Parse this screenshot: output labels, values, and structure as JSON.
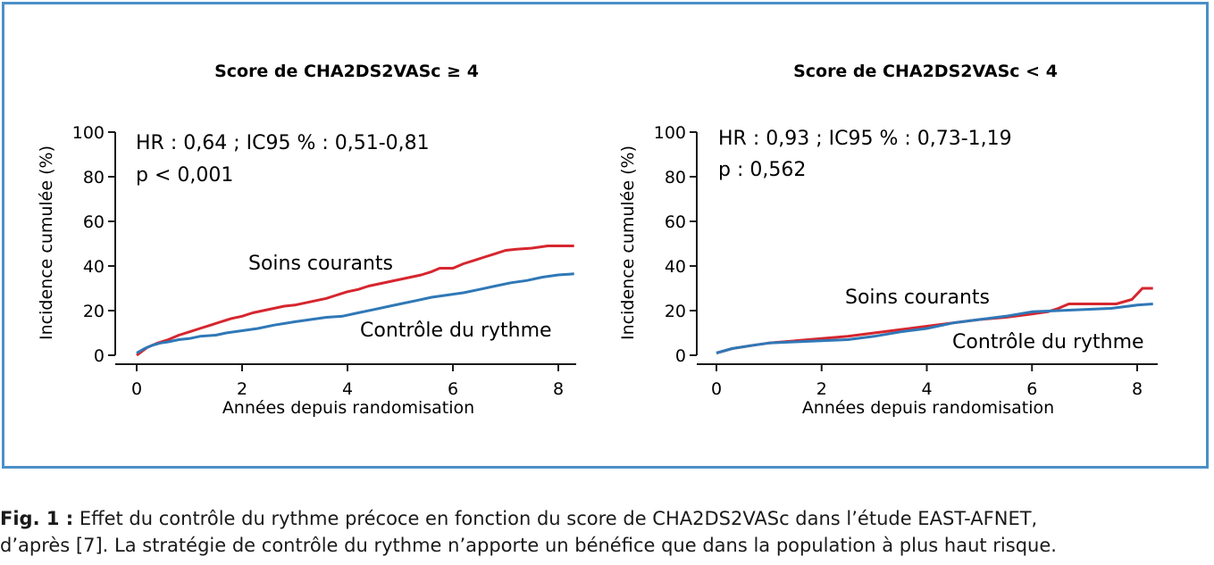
{
  "figure": {
    "caption_label": "Fig. 1 :",
    "caption_line1": " Effet du contrôle du rythme précoce en fonction du score de CHA2DS2VASc dans l’étude EAST-AFNET,",
    "caption_line2": "d’après [7]. La stratégie de contrôle du rythme n’apporte un bénéfice que dans la population à plus haut risque.",
    "colors": {
      "frame": "#4a90c8",
      "soins_courants": "#d6262f",
      "controle_rythme": "#2f78b7",
      "axis": "#1a1a1a"
    }
  },
  "chart_data": [
    {
      "type": "line",
      "title": "Score de CHA2DS2VASc ≥ 4",
      "xlabel": "Années depuis randomisation",
      "ylabel": "Incidence cumulée (%)",
      "xlim": [
        0,
        8.3
      ],
      "ylim": [
        0,
        100
      ],
      "xticks": [
        "0",
        "2",
        "4",
        "6",
        "8"
      ],
      "yticks": [
        "0",
        "20",
        "40",
        "60",
        "80",
        "100"
      ],
      "stats": [
        "HR : 0,64 ; IC95 % : 0,51-0,81",
        "p < 0,001"
      ],
      "series": [
        {
          "name": "Soins courants",
          "color": "#d6262f",
          "x": [
            0,
            0.2,
            0.4,
            0.6,
            0.8,
            1.0,
            1.2,
            1.4,
            1.6,
            1.8,
            2.0,
            2.2,
            2.4,
            2.6,
            2.8,
            3.0,
            3.2,
            3.4,
            3.6,
            3.8,
            4.0,
            4.2,
            4.4,
            4.6,
            4.8,
            5.0,
            5.2,
            5.4,
            5.6,
            5.75,
            6.0,
            6.2,
            6.4,
            6.6,
            6.8,
            7.0,
            7.2,
            7.5,
            7.8,
            8.3
          ],
          "y": [
            0,
            3.5,
            5.5,
            7,
            9,
            10.5,
            12,
            13.5,
            15,
            16.5,
            17.5,
            19,
            20,
            21,
            22,
            22.5,
            23.5,
            24.5,
            25.5,
            27,
            28.5,
            29.5,
            31,
            32,
            33,
            34,
            35,
            36,
            37.5,
            39,
            39,
            41,
            42.5,
            44,
            45.5,
            47,
            47.5,
            48,
            49,
            49
          ]
        },
        {
          "name": "Contrôle du rythme",
          "color": "#2f78b7",
          "x": [
            0,
            0.15,
            0.3,
            0.45,
            0.6,
            0.8,
            1.0,
            1.2,
            1.5,
            1.7,
            2.0,
            2.3,
            2.6,
            3.0,
            3.3,
            3.6,
            3.9,
            4.2,
            4.5,
            4.8,
            5.0,
            5.3,
            5.6,
            5.9,
            6.2,
            6.5,
            6.8,
            7.1,
            7.4,
            7.7,
            8.0,
            8.3
          ],
          "y": [
            1,
            3,
            4.5,
            5.5,
            6,
            7,
            7.5,
            8.5,
            9,
            10,
            11,
            12,
            13.5,
            15,
            16,
            17,
            17.5,
            19,
            20.5,
            22,
            23,
            24.5,
            26,
            27,
            28,
            29.5,
            31,
            32.5,
            33.5,
            35,
            36,
            36.5
          ]
        }
      ],
      "labels": {
        "soins_courants": "Soins courants",
        "controle_rythme": "Contrôle du rythme"
      }
    },
    {
      "type": "line",
      "title": "Score de CHA2DS2VASc < 4",
      "xlabel": "Années depuis randomisation",
      "ylabel": "Incidence cumulée (%)",
      "xlim": [
        0,
        8.3
      ],
      "ylim": [
        0,
        100
      ],
      "xticks": [
        "0",
        "2",
        "4",
        "6",
        "8"
      ],
      "yticks": [
        "0",
        "20",
        "40",
        "60",
        "80",
        "100"
      ],
      "stats": [
        "HR : 0,93 ; IC95 % : 0,73-1,19",
        "p : 0,562"
      ],
      "series": [
        {
          "name": "Soins courants",
          "color": "#d6262f",
          "x": [
            0,
            0.3,
            0.7,
            1.0,
            1.5,
            2.0,
            2.5,
            3.0,
            3.5,
            4.0,
            4.5,
            5.0,
            5.5,
            6.0,
            6.3,
            6.5,
            6.7,
            7.0,
            7.3,
            7.6,
            7.9,
            8.1,
            8.3
          ],
          "y": [
            1,
            3,
            4.5,
            5.5,
            6.5,
            7.5,
            8.5,
            10,
            11.5,
            13,
            14.5,
            16,
            17,
            18.5,
            19.5,
            21,
            23,
            23,
            23,
            23,
            25,
            30,
            30
          ]
        },
        {
          "name": "Contrôle du rythme",
          "color": "#2f78b7",
          "x": [
            0,
            0.3,
            0.7,
            1.0,
            1.5,
            2.0,
            2.5,
            3.0,
            3.5,
            4.0,
            4.5,
            5.0,
            5.5,
            6.0,
            6.5,
            7.0,
            7.5,
            8.0,
            8.3
          ],
          "y": [
            1,
            3,
            4.5,
            5.5,
            6,
            6.5,
            7,
            8.5,
            10.5,
            12,
            14.5,
            16,
            17.5,
            19.5,
            20,
            20.5,
            21,
            22.5,
            23
          ]
        }
      ],
      "labels": {
        "soins_courants": "Soins courants",
        "controle_rythme": "Contrôle du rythme"
      }
    }
  ]
}
